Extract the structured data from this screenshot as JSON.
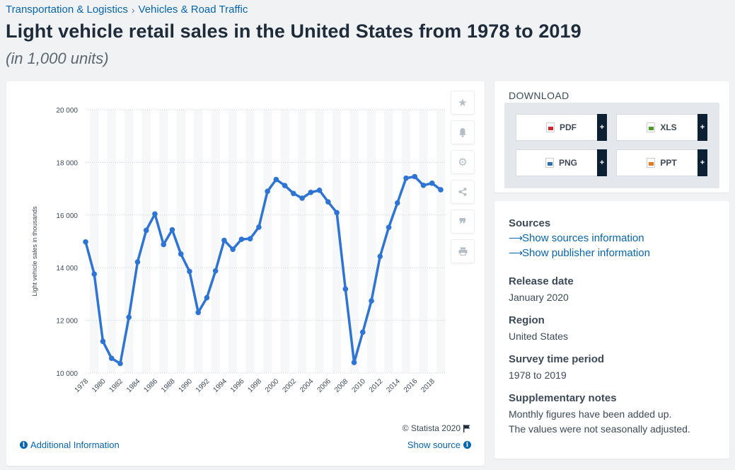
{
  "breadcrumb": {
    "level1": "Transportation & Logistics",
    "separator": "›",
    "level2": "Vehicles & Road Traffic"
  },
  "title": "Light vehicle retail sales in the United States from 1978 to 2019",
  "subtitle": "(in 1,000 units)",
  "chart_data": {
    "type": "line",
    "title": "",
    "xlabel": "",
    "ylabel": "Light vehicle sales in thousands",
    "ylim": [
      10000,
      20000
    ],
    "yticks": [
      10000,
      12000,
      14000,
      16000,
      18000,
      20000
    ],
    "ytick_labels": [
      "10 000",
      "12 000",
      "14 000",
      "16 000",
      "18 000",
      "20 000"
    ],
    "xtick_labels": [
      "1978",
      "1980",
      "1982",
      "1984",
      "1986",
      "1988",
      "1990",
      "1992",
      "1994",
      "1996",
      "1998",
      "2000",
      "2002",
      "2004",
      "2006",
      "2008",
      "2010",
      "2012",
      "2014",
      "2016",
      "2018"
    ],
    "grid": true,
    "color": "#2e74d4",
    "x": [
      1978,
      1979,
      1980,
      1981,
      1982,
      1983,
      1984,
      1985,
      1986,
      1987,
      1988,
      1989,
      1990,
      1991,
      1992,
      1993,
      1994,
      1995,
      1996,
      1997,
      1998,
      1999,
      2000,
      2001,
      2002,
      2003,
      2004,
      2005,
      2006,
      2007,
      2008,
      2009,
      2010,
      2011,
      2012,
      2013,
      2014,
      2015,
      2016,
      2017,
      2018,
      2019
    ],
    "values": [
      14980,
      13760,
      11200,
      10560,
      10360,
      12120,
      14220,
      15420,
      16040,
      14880,
      15440,
      14520,
      13860,
      12300,
      12860,
      13880,
      15040,
      14700,
      15080,
      15100,
      15540,
      16900,
      17350,
      17120,
      16820,
      16640,
      16860,
      16940,
      16500,
      16090,
      13190,
      10400,
      11550,
      12740,
      14430,
      15530,
      16460,
      17400,
      17460,
      17130,
      17210,
      16960
    ]
  },
  "toolbar": {
    "bookmark_icon": "star-icon",
    "alert_icon": "bell-icon",
    "settings_icon": "gear-icon",
    "share_icon": "share-icon",
    "cite_icon": "quote-icon",
    "print_icon": "print-icon"
  },
  "credit": "© Statista 2020",
  "footer": {
    "additional_info": "Additional Information",
    "show_source": "Show source"
  },
  "download": {
    "heading": "DOWNLOAD",
    "buttons": [
      {
        "label": "PDF",
        "color": "#d0262b"
      },
      {
        "label": "XLS",
        "color": "#4c9a2a"
      },
      {
        "label": "PNG",
        "color": "#2b6fb4"
      },
      {
        "label": "PPT",
        "color": "#e3791f"
      }
    ],
    "plus": "+"
  },
  "info": {
    "sources_label": "Sources",
    "sources_link": "Show sources information",
    "publisher_link": "Show publisher information",
    "release_label": "Release date",
    "release_value": "January 2020",
    "region_label": "Region",
    "region_value": "United States",
    "survey_label": "Survey time period",
    "survey_value": "1978 to 2019",
    "notes_label": "Supplementary notes",
    "notes_line1": "Monthly figures have been added up.",
    "notes_line2": "The values were not seasonally adjusted."
  }
}
